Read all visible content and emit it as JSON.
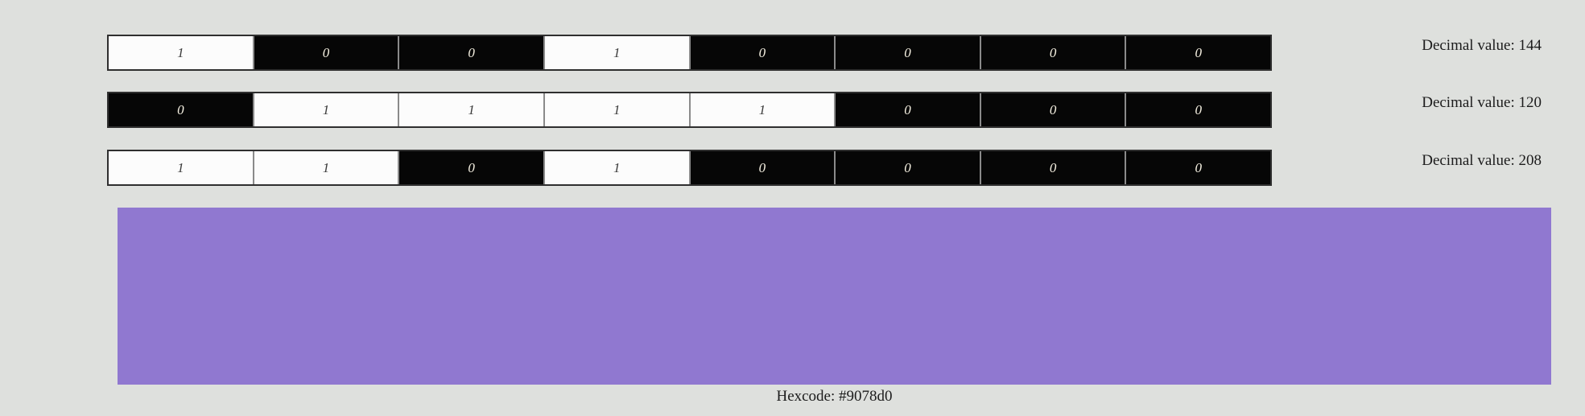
{
  "page": {
    "background": "#dee0dd"
  },
  "binary_rows": [
    {
      "bits": [
        "1",
        "0",
        "0",
        "1",
        "0",
        "0",
        "0",
        "0"
      ],
      "decimal_value": 144,
      "decimal_label": "Decimal value: 144"
    },
    {
      "bits": [
        "0",
        "1",
        "1",
        "1",
        "1",
        "0",
        "0",
        "0"
      ],
      "decimal_value": 120,
      "decimal_label": "Decimal value: 120"
    },
    {
      "bits": [
        "1",
        "1",
        "0",
        "1",
        "0",
        "0",
        "0",
        "0"
      ],
      "decimal_value": 208,
      "decimal_label": "Decimal value: 208"
    }
  ],
  "swatch": {
    "color": "#9078d0",
    "hex_label": "Hexcode: #9078d0"
  },
  "colors": {
    "bit_on_bg": "#fcfcfc",
    "bit_on_text": "#3a3a3a",
    "bit_off_bg": "#060606",
    "bit_off_text": "#f6f1e2",
    "row_border": "#2f2f2f",
    "cell_divider": "#8a8a8a"
  }
}
